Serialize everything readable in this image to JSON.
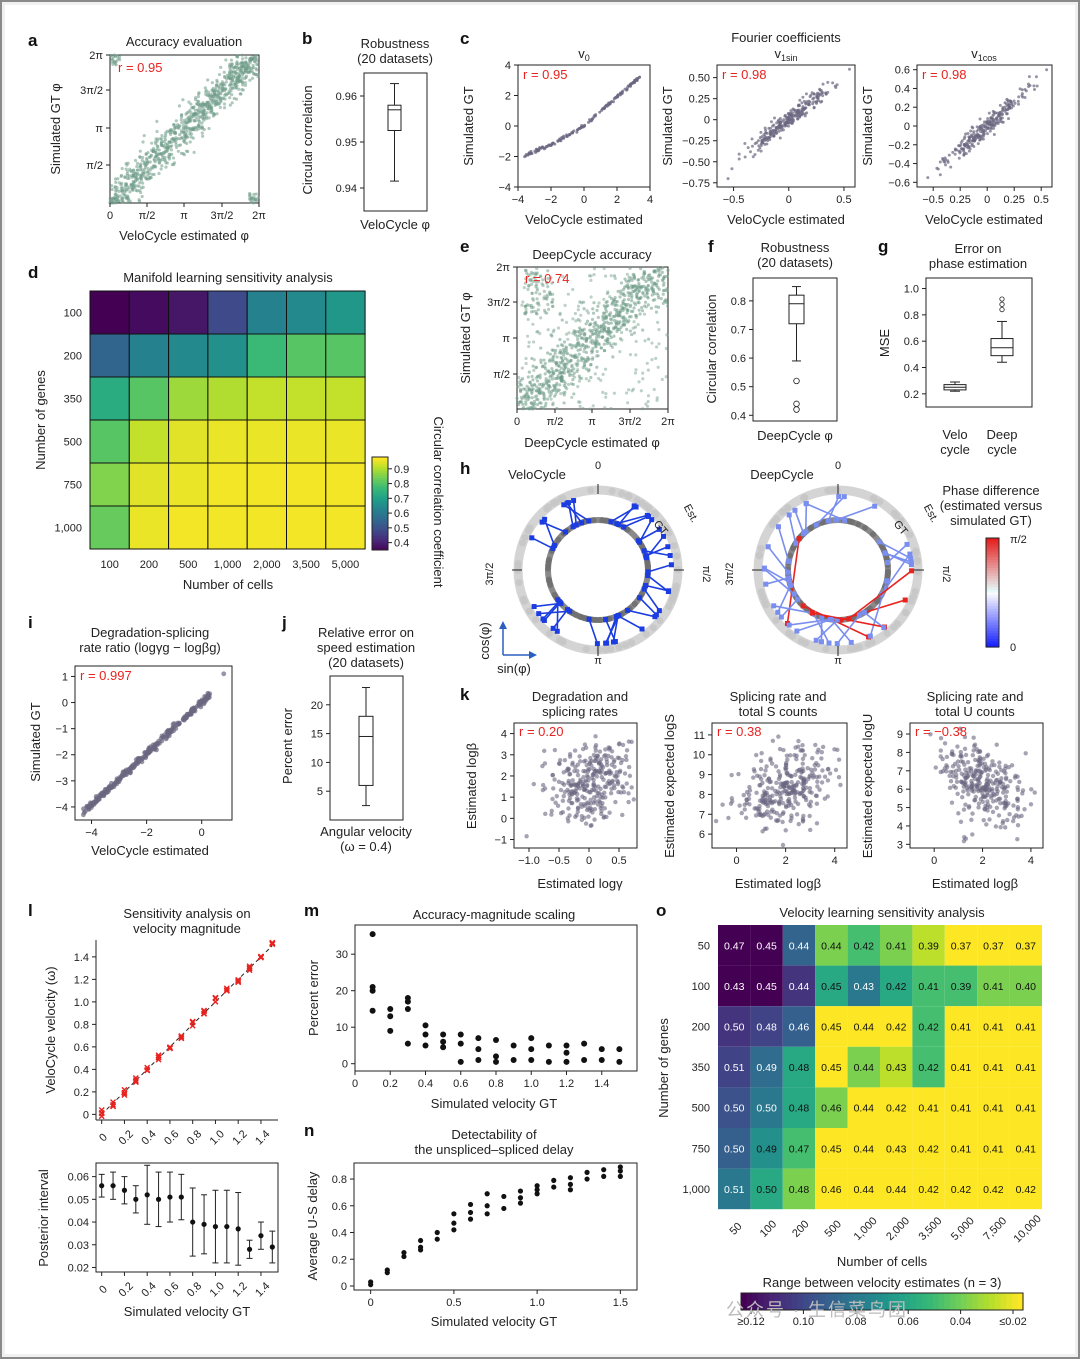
{
  "panel_letters": [
    "a",
    "b",
    "c",
    "d",
    "e",
    "f",
    "g",
    "h",
    "i",
    "j",
    "k",
    "l",
    "m",
    "n",
    "o"
  ],
  "watermark": "公众号 · 生信菜鸟团",
  "colors": {
    "green": "#6f9c88",
    "purple": "#6b6680",
    "red": "#e8231f",
    "black": "#111111",
    "blue": "#1a3ce0",
    "gray": "#bdbdbd"
  },
  "chart_data": [
    {
      "id": "a",
      "type": "scatter",
      "title": "Accuracy evaluation",
      "xlabel": "VeloCycle estimated φ",
      "ylabel": "Simulated GT φ",
      "xticks": [
        "0",
        "π/2",
        "π",
        "3π/2",
        "2π"
      ],
      "yticks": [
        "π/2",
        "π",
        "3π/2",
        "2π"
      ],
      "annotation": "r = 0.95",
      "xlim": [
        0,
        6.283
      ],
      "ylim": [
        0,
        6.283
      ],
      "description_of_data": "points along identity line",
      "series": [
        {
          "x": [
            0,
            1.57,
            3.14,
            4.71,
            6.28
          ],
          "y": [
            0,
            1.57,
            3.14,
            4.71,
            6.28
          ]
        }
      ]
    },
    {
      "id": "b",
      "type": "box",
      "title": "Robustness",
      "subtitle": "(20 datasets)",
      "xlabel": "VeloCycle φ",
      "ylabel": "Circular correlation",
      "yticks": [
        "0.94",
        "0.95",
        "0.96"
      ],
      "ylim": [
        0.935,
        0.965
      ],
      "box": {
        "min": 0.9415,
        "q1": 0.9525,
        "median": 0.957,
        "q3": 0.958,
        "max": 0.9627
      }
    },
    {
      "id": "c1",
      "type": "scatter",
      "title": "v",
      "title_sub": "0",
      "ylabel": "Simulated GT",
      "xlabel": "VeloCycle estimated",
      "xticks": [
        "−4",
        "−2",
        "0",
        "2",
        "4"
      ],
      "yticks": [
        "−4",
        "−2",
        "0",
        "2",
        "4"
      ],
      "annotation": "r = 0.95",
      "xlim": [
        -4,
        4
      ],
      "ylim": [
        -4,
        4
      ]
    },
    {
      "id": "c2",
      "type": "scatter",
      "title": "v",
      "title_sub": "1sin",
      "ylabel": "Simulated GT",
      "xlabel": "VeloCycle estimated",
      "xticks": [
        "−0.5",
        "0",
        "0.5"
      ],
      "yticks": [
        "−0.75",
        "−0.50",
        "−0.25",
        "0",
        "0.25",
        "0.50"
      ],
      "annotation": "r = 0.98",
      "xlim": [
        -0.65,
        0.6
      ],
      "ylim": [
        -0.8,
        0.65
      ]
    },
    {
      "id": "c3",
      "type": "scatter",
      "title": "v",
      "title_sub": "1cos",
      "ylabel": "Simulated GT",
      "xlabel": "VeloCycle estimated",
      "xticks": [
        "−0.5",
        "0.25",
        "0",
        "0.25",
        "0.5"
      ],
      "yticks": [
        "−0.6",
        "−0.4",
        "−0.2",
        "0",
        "0.2",
        "0.4",
        "0.6"
      ],
      "annotation": "r = 0.98",
      "xlim": [
        -0.65,
        0.6
      ],
      "ylim": [
        -0.65,
        0.65
      ]
    },
    {
      "id": "c_header",
      "type": "text",
      "title": "Fourier coefficients"
    },
    {
      "id": "d",
      "type": "heatmap",
      "title": "Manifold learning sensitivity analysis",
      "xlabel": "Number of cells",
      "ylabel": "Number of genes",
      "x": [
        "100",
        "200",
        "500",
        "1,000",
        "2,000",
        "3,500",
        "5,000"
      ],
      "y": [
        "100",
        "200",
        "350",
        "500",
        "750",
        "1,000"
      ],
      "colorbar_label": "Circular correlation coefficient",
      "colorbar_ticks": [
        "0.9",
        "0.8",
        "0.7",
        "0.6",
        "0.5",
        "0.4"
      ],
      "values": [
        [
          0.3,
          0.32,
          0.34,
          0.45,
          0.6,
          0.62,
          0.66
        ],
        [
          0.52,
          0.6,
          0.62,
          0.64,
          0.76,
          0.8,
          0.8
        ],
        [
          0.72,
          0.8,
          0.88,
          0.9,
          0.92,
          0.92,
          0.92
        ],
        [
          0.8,
          0.92,
          0.95,
          0.96,
          0.96,
          0.96,
          0.96
        ],
        [
          0.85,
          0.95,
          0.96,
          0.97,
          0.97,
          0.97,
          0.97
        ],
        [
          0.82,
          0.96,
          0.97,
          0.97,
          0.97,
          0.97,
          0.97
        ]
      ]
    },
    {
      "id": "e",
      "type": "scatter",
      "title": "DeepCycle accuracy",
      "xlabel": "DeepCycle estimated φ",
      "ylabel": "Simulated GT φ",
      "xticks": [
        "0",
        "π/2",
        "π",
        "3π/2",
        "2π"
      ],
      "yticks": [
        "π/2",
        "π",
        "3π/2",
        "2π"
      ],
      "annotation": "r = 0.74"
    },
    {
      "id": "f",
      "type": "box",
      "title": "Robustness",
      "subtitle": "(20 datasets)",
      "xlabel": "DeepCycle φ",
      "ylabel": "Circular correlation",
      "yticks": [
        "0.4",
        "0.5",
        "0.6",
        "0.7",
        "0.8"
      ],
      "ylim": [
        0.38,
        0.88
      ],
      "box": {
        "min": 0.59,
        "q1": 0.72,
        "median": 0.79,
        "q3": 0.82,
        "max": 0.85
      },
      "outliers": [
        0.52,
        0.44,
        0.42
      ]
    },
    {
      "id": "g",
      "type": "box",
      "title": "Error on",
      "subtitle": "phase estimation",
      "ylabel": "MSE",
      "yticks": [
        "0.2",
        "0.4",
        "0.6",
        "0.8",
        "1.0"
      ],
      "categories": [
        "Velo cycle",
        "Deep cycle"
      ],
      "boxes": [
        {
          "min": 0.22,
          "q1": 0.23,
          "median": 0.25,
          "q3": 0.27,
          "max": 0.29
        },
        {
          "min": 0.44,
          "q1": 0.49,
          "median": 0.55,
          "q3": 0.62,
          "max": 0.75,
          "outliers": [
            0.84,
            0.88,
            0.92
          ]
        }
      ]
    },
    {
      "id": "h",
      "type": "polar-diagram",
      "panels": [
        "VeloCycle",
        "DeepCycle"
      ],
      "ring_labels": [
        "0",
        "π/2",
        "π",
        "3π/2"
      ],
      "ring_names": [
        "Est.",
        "GT"
      ],
      "legend_title": "Phase difference (estimated versus simulated GT)",
      "colorbar_ticks": [
        "π/2",
        "0"
      ],
      "axes_labels": [
        "cos(φ)",
        "sin(φ)"
      ]
    },
    {
      "id": "i",
      "type": "scatter",
      "title": "Degradation-splicing",
      "subtitle": "rate ratio (logγ",
      "title_full": "rate ratio (logγg − logβg)",
      "xlabel": "VeloCycle estimated",
      "ylabel": "Simulated GT",
      "xticks": [
        "−4",
        "−2",
        "0"
      ],
      "yticks": [
        "−4",
        "−3",
        "−2",
        "−1",
        "0",
        "1"
      ],
      "annotation": "r = 0.997",
      "xlim": [
        -4.6,
        1.1
      ],
      "ylim": [
        -4.5,
        1.4
      ]
    },
    {
      "id": "j",
      "type": "box",
      "title": "Relative error on",
      "subtitle": "speed estimation",
      "subtitle2": "(20 datasets)",
      "xlabel": "Angular velocity",
      "xlabel2": "(ω = 0.4)",
      "ylabel": "Percent error",
      "yticks": [
        "5",
        "10",
        "15",
        "20"
      ],
      "ylim": [
        0,
        25
      ],
      "box": {
        "min": 2.5,
        "q1": 6,
        "median": 14.5,
        "q3": 18,
        "max": 23
      }
    },
    {
      "id": "k1",
      "type": "scatter",
      "title": "Degradation and",
      "subtitle": "splicing rates",
      "xlabel": "Estimated logγ",
      "ylabel": "Estimated logβ",
      "xticks": [
        "−1.0",
        "−0.5",
        "0",
        "0.5"
      ],
      "yticks": [
        "−1",
        "0",
        "1",
        "2",
        "3",
        "4"
      ],
      "annotation": "r = 0.20"
    },
    {
      "id": "k2",
      "type": "scatter",
      "title": "Splicing rate and",
      "subtitle": "total S counts",
      "xlabel": "Estimated logβ",
      "ylabel": "Estimated expected logS",
      "xticks": [
        "0",
        "2",
        "4"
      ],
      "yticks": [
        "6",
        "7",
        "8",
        "9",
        "10",
        "11"
      ],
      "annotation": "r = 0.38"
    },
    {
      "id": "k3",
      "type": "scatter",
      "title": "Splicing rate and",
      "subtitle": "total U counts",
      "xlabel": "Estimated logβ",
      "ylabel": "Estimated expected logU",
      "xticks": [
        "0",
        "2",
        "4"
      ],
      "yticks": [
        "3",
        "4",
        "5",
        "6",
        "7",
        "8",
        "9"
      ],
      "annotation": "r = −0.38"
    },
    {
      "id": "l_top",
      "type": "scatter",
      "title": "Sensitivity analysis on",
      "subtitle": "velocity magnitude",
      "ylabel": "VeloCycle velocity (ω)",
      "xticks": [
        "0",
        "0.2",
        "0.4",
        "0.6",
        "0.8",
        "1.0",
        "1.2",
        "1.4"
      ],
      "yticks": [
        "0",
        "0.2",
        "0.4",
        "0.6",
        "0.8",
        "1.0",
        "1.2",
        "1.4"
      ],
      "x": [
        0,
        0.1,
        0.2,
        0.3,
        0.4,
        0.5,
        0.6,
        0.7,
        0.8,
        0.9,
        1.0,
        1.1,
        1.2,
        1.3,
        1.4,
        1.5
      ],
      "y": [
        0.01,
        0.1,
        0.2,
        0.3,
        0.4,
        0.5,
        0.6,
        0.7,
        0.8,
        0.91,
        1.01,
        1.1,
        1.2,
        1.31,
        1.41,
        1.5
      ]
    },
    {
      "id": "l_bottom",
      "type": "errorbar",
      "xlabel": "Simulated velocity GT",
      "ylabel": "Posterior interval",
      "xticks": [
        "0",
        "0.2",
        "0.4",
        "0.6",
        "0.8",
        "1.0",
        "1.2",
        "1.4"
      ],
      "yticks": [
        "0.02",
        "0.03",
        "0.04",
        "0.05",
        "0.06"
      ],
      "ylim": [
        0.018,
        0.066
      ],
      "x": [
        0,
        0.1,
        0.2,
        0.3,
        0.4,
        0.5,
        0.6,
        0.7,
        0.8,
        0.9,
        1.0,
        1.1,
        1.2,
        1.3,
        1.4,
        1.5
      ],
      "y": [
        0.056,
        0.056,
        0.054,
        0.05,
        0.052,
        0.05,
        0.051,
        0.051,
        0.04,
        0.039,
        0.038,
        0.038,
        0.037,
        0.028,
        0.034,
        0.029
      ],
      "err": [
        0.005,
        0.006,
        0.006,
        0.006,
        0.013,
        0.012,
        0.011,
        0.01,
        0.015,
        0.013,
        0.016,
        0.016,
        0.016,
        0.004,
        0.006,
        0.007
      ]
    },
    {
      "id": "m",
      "type": "scatter",
      "title": "Accuracy-magnitude scaling",
      "xlabel": "Simulated velocity GT",
      "ylabel": "Percent error",
      "xticks": [
        "0",
        "0.2",
        "0.4",
        "0.6",
        "0.8",
        "1.0",
        "1.2",
        "1.4"
      ],
      "yticks": [
        "0",
        "10",
        "20",
        "30"
      ],
      "xlim": [
        0,
        1.6
      ],
      "ylim": [
        -2,
        38
      ],
      "x": [
        0.1,
        0.1,
        0.1,
        0.1,
        0.2,
        0.2,
        0.2,
        0.3,
        0.3,
        0.3,
        0.3,
        0.4,
        0.4,
        0.4,
        0.5,
        0.5,
        0.5,
        0.6,
        0.6,
        0.6,
        0.7,
        0.7,
        0.7,
        0.8,
        0.8,
        0.8,
        0.9,
        0.9,
        1.0,
        1.0,
        1.0,
        1.1,
        1.1,
        1.2,
        1.2,
        1.2,
        1.3,
        1.3,
        1.4,
        1.4,
        1.5,
        1.5
      ],
      "y": [
        35.5,
        21,
        20,
        14.5,
        15,
        13,
        9,
        18,
        17,
        15,
        5.5,
        10.5,
        8,
        5,
        8,
        6,
        4.5,
        8,
        5.5,
        0.5,
        7,
        4,
        1,
        6.5,
        2,
        0.5,
        5,
        1,
        7,
        4,
        1,
        5,
        0.5,
        5,
        3,
        0.5,
        5.5,
        1,
        4,
        1,
        4,
        0.5
      ]
    },
    {
      "id": "n",
      "type": "scatter",
      "title": "Detectability of",
      "subtitle": "the unspliced–spliced delay",
      "xlabel": "Simulated velocity GT",
      "ylabel": "Average U-S delay",
      "xticks": [
        "0",
        "0.5",
        "1.0",
        "1.5"
      ],
      "yticks": [
        "0",
        "0.2",
        "0.4",
        "0.6",
        "0.8"
      ],
      "xlim": [
        -0.1,
        1.6
      ],
      "ylim": [
        -0.03,
        0.92
      ],
      "x": [
        0,
        0,
        0.1,
        0.1,
        0.2,
        0.2,
        0.3,
        0.3,
        0.3,
        0.4,
        0.4,
        0.5,
        0.5,
        0.5,
        0.6,
        0.6,
        0.6,
        0.7,
        0.7,
        0.7,
        0.8,
        0.8,
        0.9,
        0.9,
        0.9,
        1.0,
        1.0,
        1.0,
        1.1,
        1.1,
        1.2,
        1.2,
        1.2,
        1.3,
        1.3,
        1.4,
        1.4,
        1.5,
        1.5,
        1.5
      ],
      "y": [
        0.01,
        0.03,
        0.12,
        0.1,
        0.25,
        0.22,
        0.34,
        0.29,
        0.27,
        0.4,
        0.35,
        0.54,
        0.47,
        0.42,
        0.61,
        0.55,
        0.5,
        0.69,
        0.6,
        0.54,
        0.67,
        0.58,
        0.71,
        0.66,
        0.62,
        0.75,
        0.72,
        0.69,
        0.79,
        0.74,
        0.81,
        0.76,
        0.72,
        0.85,
        0.8,
        0.87,
        0.82,
        0.89,
        0.86,
        0.82
      ]
    },
    {
      "id": "o",
      "type": "heatmap",
      "title": "Velocity learning sensitivity analysis",
      "xlabel": "Number of cells",
      "ylabel": "Number of genes",
      "x": [
        "50",
        "100",
        "200",
        "500",
        "1,000",
        "2,000",
        "3,500",
        "5,000",
        "7,500",
        "10,000"
      ],
      "y": [
        "50",
        "100",
        "200",
        "350",
        "500",
        "750",
        "1,000"
      ],
      "colorbar_label": "Range between velocity estimates (n = 3)",
      "colorbar_ticks": [
        "≥0.12",
        "0.10",
        "0.08",
        "0.06",
        "0.04",
        "≤0.02"
      ],
      "values": [
        [
          0.47,
          0.45,
          0.44,
          0.44,
          0.42,
          0.41,
          0.39,
          0.37,
          0.37,
          0.37
        ],
        [
          0.43,
          0.45,
          0.44,
          0.45,
          0.43,
          0.42,
          0.41,
          0.39,
          0.41,
          0.4
        ],
        [
          0.5,
          0.48,
          0.46,
          0.45,
          0.44,
          0.42,
          0.42,
          0.41,
          0.41,
          0.41
        ],
        [
          0.51,
          0.49,
          0.48,
          0.45,
          0.44,
          0.43,
          0.42,
          0.41,
          0.41,
          0.41
        ],
        [
          0.5,
          0.5,
          0.48,
          0.46,
          0.44,
          0.42,
          0.41,
          0.41,
          0.41,
          0.41
        ],
        [
          0.5,
          0.49,
          0.47,
          0.45,
          0.44,
          0.43,
          0.42,
          0.41,
          0.41,
          0.41
        ],
        [
          0.51,
          0.5,
          0.48,
          0.46,
          0.44,
          0.44,
          0.42,
          0.42,
          0.42,
          0.42
        ]
      ],
      "color_levels": [
        [
          0.12,
          0.12,
          0.088,
          0.04,
          0.05,
          0.04,
          0.03,
          0.02,
          0.02,
          0.02
        ],
        [
          0.12,
          0.12,
          0.105,
          0.06,
          0.08,
          0.06,
          0.05,
          0.05,
          0.04,
          0.04
        ],
        [
          0.105,
          0.1,
          0.09,
          0.02,
          0.005,
          0.015,
          0.05,
          0.01,
          0.02,
          0.02
        ],
        [
          0.1,
          0.085,
          0.06,
          0.02,
          0.04,
          0.03,
          0.05,
          0.01,
          0.01,
          0.01
        ],
        [
          0.095,
          0.08,
          0.06,
          0.04,
          0.02,
          0.01,
          0.01,
          0.01,
          0.01,
          0.01
        ],
        [
          0.09,
          0.07,
          0.05,
          0.02,
          0.01,
          0.01,
          0.01,
          0.01,
          0.01,
          0.01
        ],
        [
          0.08,
          0.06,
          0.04,
          0.01,
          0.01,
          0.01,
          0.01,
          0.01,
          0.01,
          0.01
        ]
      ]
    }
  ]
}
